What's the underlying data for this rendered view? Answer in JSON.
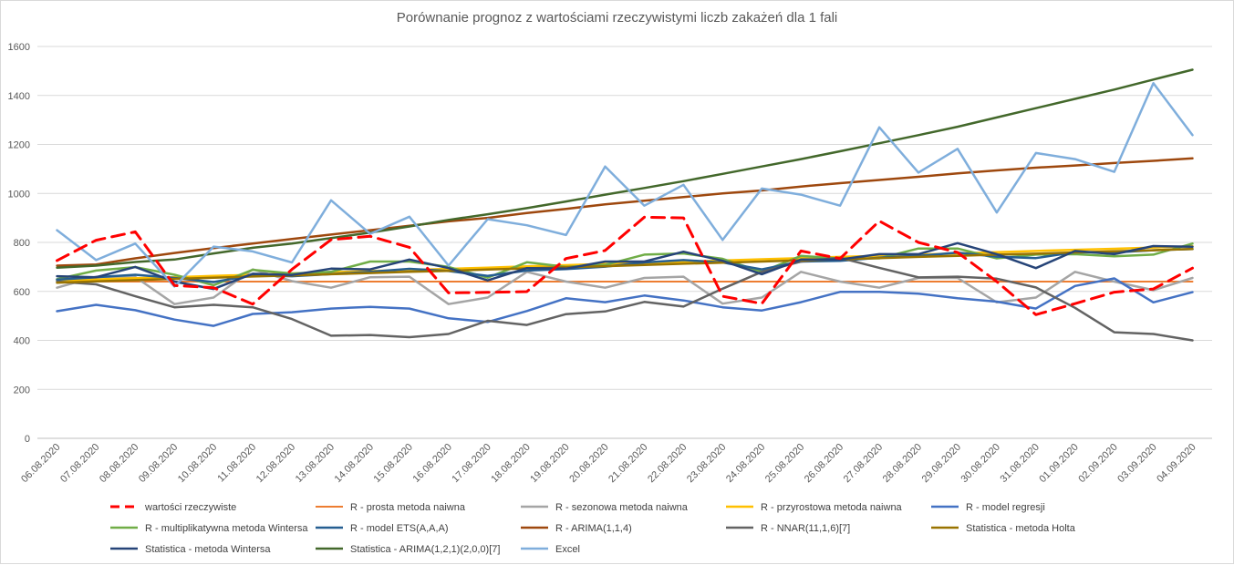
{
  "chart_data": {
    "type": "line",
    "title": "Porównanie prognoz z wartościami rzeczywistymi liczb zakażeń dla 1 fali",
    "xlabel": "",
    "ylabel": "",
    "ylim": [
      0,
      1600
    ],
    "yticks": [
      "0",
      "200",
      "400",
      "600",
      "800",
      "1000",
      "1200",
      "1400",
      "1600"
    ],
    "grid": true,
    "legend_position": "bottom",
    "categories": [
      "06.08.2020",
      "07.08.2020",
      "08.08.2020",
      "09.08.2020",
      "10.08.2020",
      "11.08.2020",
      "12.08.2020",
      "13.08.2020",
      "14.08.2020",
      "15.08.2020",
      "16.08.2020",
      "17.08.2020",
      "18.08.2020",
      "19.08.2020",
      "20.08.2020",
      "21.08.2020",
      "22.08.2020",
      "23.08.2020",
      "24.08.2020",
      "25.08.2020",
      "26.08.2020",
      "27.08.2020",
      "28.08.2020",
      "29.08.2020",
      "30.08.2020",
      "31.08.2020",
      "01.09.2020",
      "02.09.2020",
      "03.09.2020",
      "04.09.2020"
    ],
    "series": [
      {
        "name": "wartości rzeczywiste",
        "color": "#ff0000",
        "dashed": true,
        "width": 3,
        "values": [
          726,
          809,
          843,
          624,
          615,
          548,
          690,
          811,
          825,
          780,
          594,
          596,
          599,
          734,
          767,
          903,
          900,
          580,
          550,
          765,
          734,
          887,
          800,
          759,
          640,
          505,
          550,
          597,
          610,
          695
        ]
      },
      {
        "name": "R - prosta metoda naiwna",
        "color": "#ed7d31",
        "dashed": false,
        "width": 2,
        "values": [
          640,
          640,
          640,
          640,
          640,
          640,
          640,
          640,
          640,
          640,
          640,
          640,
          640,
          640,
          640,
          640,
          640,
          640,
          640,
          640,
          640,
          640,
          640,
          640,
          640,
          640,
          640,
          640,
          640,
          640
        ]
      },
      {
        "name": "R - sezonowa metoda naiwna",
        "color": "#a5a5a5",
        "dashed": false,
        "width": 2.5,
        "values": [
          615,
          660,
          659,
          548,
          575,
          690,
          642,
          615,
          658,
          660,
          548,
          575,
          680,
          640,
          615,
          655,
          660,
          550,
          575,
          680,
          640,
          615,
          655,
          655,
          555,
          575,
          680,
          640,
          605,
          655
        ]
      },
      {
        "name": "R - przyrostowa metoda naiwna",
        "color": "#ffc000",
        "dashed": false,
        "width": 2.5,
        "values": [
          644,
          649,
          654,
          658,
          663,
          668,
          673,
          678,
          683,
          687,
          692,
          697,
          702,
          707,
          712,
          716,
          721,
          726,
          731,
          736,
          741,
          745,
          750,
          755,
          760,
          765,
          770,
          774,
          779,
          784
        ]
      },
      {
        "name": "R - model regresji",
        "color": "#4472c4",
        "dashed": false,
        "width": 2.5,
        "values": [
          519,
          545,
          523,
          485,
          459,
          508,
          515,
          530,
          537,
          530,
          490,
          475,
          520,
          572,
          556,
          583,
          563,
          535,
          522,
          556,
          598,
          598,
          591,
          572,
          558,
          530,
          622,
          653,
          555,
          597
        ]
      },
      {
        "name": "R - multiplikatywna metoda Wintersa",
        "color": "#70ad47",
        "dashed": false,
        "width": 2.5,
        "values": [
          650,
          685,
          699,
          668,
          625,
          688,
          673,
          680,
          722,
          722,
          700,
          656,
          719,
          700,
          708,
          750,
          755,
          733,
          680,
          745,
          734,
          735,
          775,
          775,
          735,
          750,
          752,
          743,
          750,
          795
        ]
      },
      {
        "name": "R - model ETS(A,A,A)",
        "color": "#255e91",
        "dashed": false,
        "width": 2.5,
        "values": [
          648,
          658,
          668,
          655,
          638,
          666,
          662,
          671,
          680,
          692,
          683,
          663,
          685,
          691,
          701,
          718,
          728,
          718,
          690,
          722,
          725,
          738,
          745,
          758,
          742,
          736,
          760,
          759,
          768,
          773
        ]
      },
      {
        "name": "R - ARIMA(1,1,4)",
        "color": "#9e480e",
        "dashed": false,
        "width": 2.5,
        "values": [
          705,
          710,
          735,
          757,
          777,
          795,
          814,
          832,
          850,
          868,
          886,
          900,
          920,
          937,
          955,
          970,
          985,
          1000,
          1012,
          1028,
          1042,
          1055,
          1068,
          1082,
          1094,
          1105,
          1114,
          1124,
          1133,
          1143
        ]
      },
      {
        "name": "R - NNAR(11,1,6)[7]",
        "color": "#636363",
        "dashed": false,
        "width": 2.5,
        "values": [
          640,
          629,
          580,
          535,
          545,
          535,
          487,
          419,
          422,
          413,
          426,
          480,
          463,
          507,
          518,
          557,
          538,
          611,
          680,
          722,
          737,
          696,
          657,
          660,
          652,
          616,
          533,
          433,
          426,
          400
        ]
      },
      {
        "name": "Statistica - metoda Holta",
        "color": "#997300",
        "dashed": false,
        "width": 2.5,
        "values": [
          635,
          641,
          646,
          651,
          656,
          661,
          665,
          670,
          675,
          680,
          684,
          689,
          694,
          699,
          703,
          708,
          713,
          717,
          722,
          727,
          731,
          736,
          741,
          745,
          750,
          754,
          759,
          764,
          768,
          773
        ]
      },
      {
        "name": "Statistica - metoda Wintersa",
        "color": "#264478",
        "dashed": false,
        "width": 2.5,
        "values": [
          662,
          658,
          700,
          640,
          610,
          672,
          667,
          693,
          690,
          730,
          695,
          645,
          695,
          693,
          722,
          722,
          762,
          725,
          670,
          730,
          730,
          752,
          752,
          797,
          752,
          695,
          765,
          752,
          785,
          782
        ]
      },
      {
        "name": "Statistica - ARIMA(1,2,1)(2,0,0)[7]",
        "color": "#43682b",
        "dashed": false,
        "width": 2.5,
        "values": [
          697,
          705,
          720,
          730,
          755,
          778,
          795,
          818,
          840,
          865,
          892,
          915,
          940,
          967,
          995,
          1022,
          1050,
          1080,
          1110,
          1140,
          1172,
          1205,
          1238,
          1272,
          1310,
          1348,
          1386,
          1424,
          1465,
          1505
        ]
      },
      {
        "name": "Excel",
        "color": "#7faedc",
        "dashed": false,
        "width": 2.5,
        "values": [
          850,
          728,
          795,
          620,
          783,
          763,
          718,
          972,
          835,
          905,
          705,
          895,
          870,
          830,
          1110,
          950,
          1035,
          810,
          1020,
          995,
          950,
          1270,
          1085,
          1182,
          922,
          1165,
          1140,
          1088,
          1450,
          1238
        ]
      }
    ]
  }
}
